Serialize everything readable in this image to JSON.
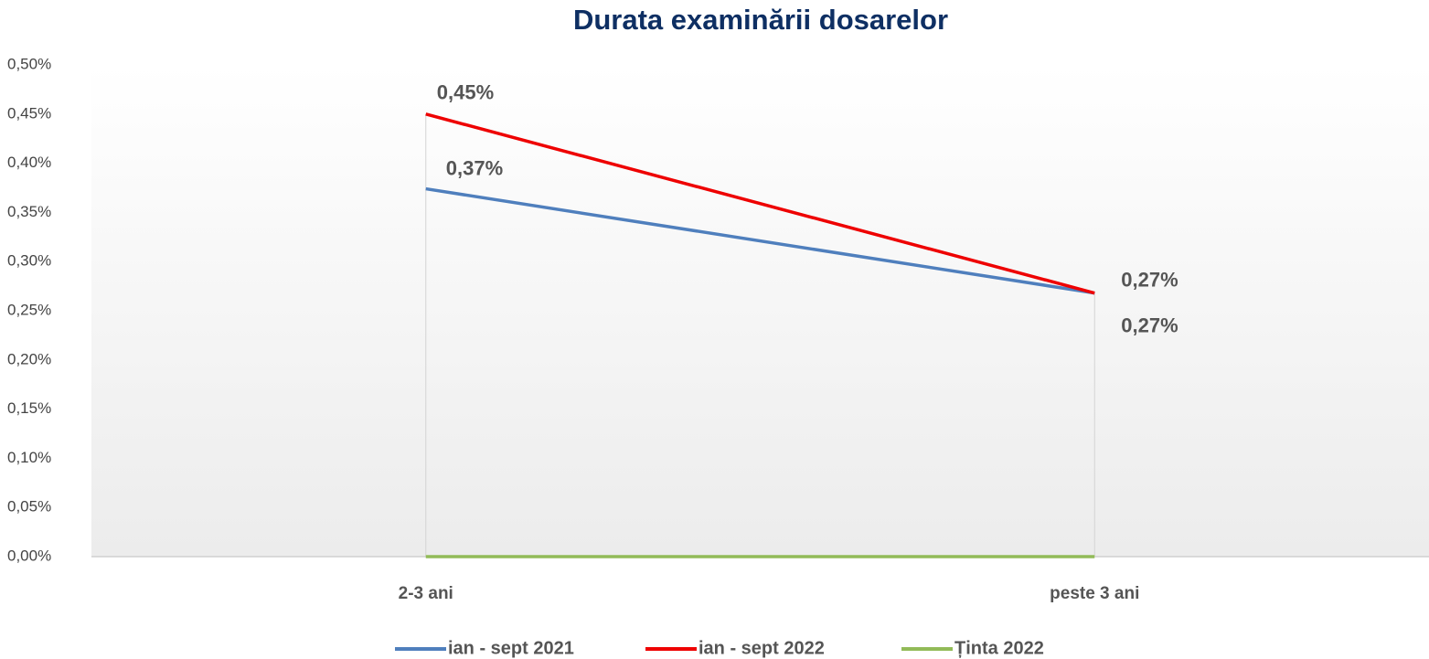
{
  "chart_data": {
    "type": "line",
    "title": "Durata examinării dosarelor",
    "categories": [
      "2-3 ani",
      "peste 3 ani"
    ],
    "series": [
      {
        "name": "ian - sept 2021",
        "color": "#4f7fbd",
        "values": [
          0.374,
          0.268
        ],
        "value_labels": [
          "0,37%",
          "0,27%"
        ]
      },
      {
        "name": "ian - sept 2022",
        "color": "#ee0000",
        "values": [
          0.45,
          0.268
        ],
        "value_labels": [
          "0,45%",
          "0,27%"
        ]
      },
      {
        "name": "Ținta 2022",
        "color": "#92bb58",
        "values": [
          0,
          0
        ]
      }
    ],
    "ylim": [
      0,
      0.5
    ],
    "yticks": [
      {
        "value": 0,
        "label": "0,00%"
      },
      {
        "value": 0.05,
        "label": "0,05%"
      },
      {
        "value": 0.1,
        "label": "0,10%"
      },
      {
        "value": 0.15,
        "label": "0,15%"
      },
      {
        "value": 0.2,
        "label": "0,20%"
      },
      {
        "value": 0.25,
        "label": "0,25%"
      },
      {
        "value": 0.3,
        "label": "0,30%"
      },
      {
        "value": 0.35,
        "label": "0,35%"
      },
      {
        "value": 0.4,
        "label": "0,40%"
      },
      {
        "value": 0.45,
        "label": "0,45%"
      },
      {
        "value": 0.5,
        "label": "0,50%"
      }
    ],
    "legend": "bottom"
  }
}
